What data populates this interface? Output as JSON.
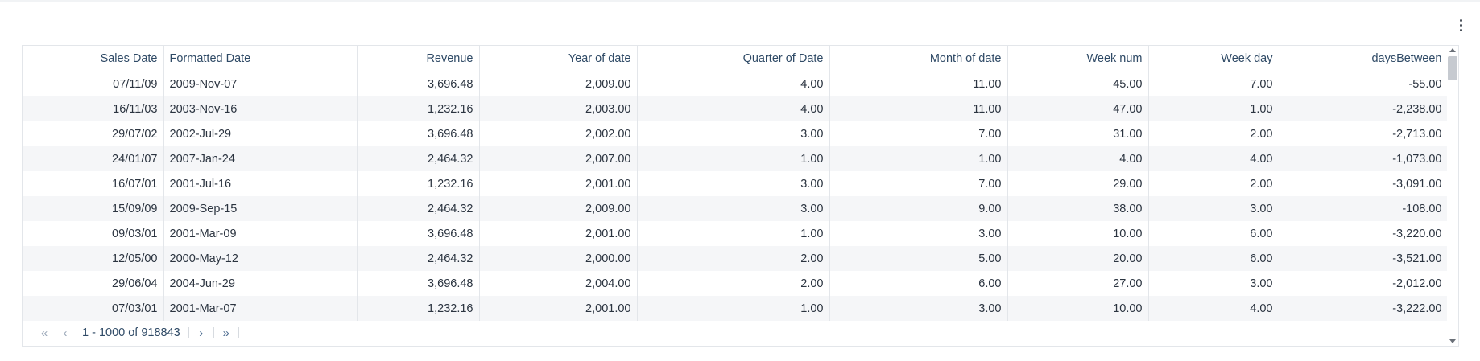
{
  "table": {
    "columns": [
      "Sales Date",
      "Formatted Date",
      "Revenue",
      "Year of date",
      "Quarter of Date",
      "Month of date",
      "Week num",
      "Week day",
      "daysBetween"
    ],
    "rows": [
      [
        "07/11/09",
        "2009-Nov-07",
        "3,696.48",
        "2,009.00",
        "4.00",
        "11.00",
        "45.00",
        "7.00",
        "-55.00"
      ],
      [
        "16/11/03",
        "2003-Nov-16",
        "1,232.16",
        "2,003.00",
        "4.00",
        "11.00",
        "47.00",
        "1.00",
        "-2,238.00"
      ],
      [
        "29/07/02",
        "2002-Jul-29",
        "3,696.48",
        "2,002.00",
        "3.00",
        "7.00",
        "31.00",
        "2.00",
        "-2,713.00"
      ],
      [
        "24/01/07",
        "2007-Jan-24",
        "2,464.32",
        "2,007.00",
        "1.00",
        "1.00",
        "4.00",
        "4.00",
        "-1,073.00"
      ],
      [
        "16/07/01",
        "2001-Jul-16",
        "1,232.16",
        "2,001.00",
        "3.00",
        "7.00",
        "29.00",
        "2.00",
        "-3,091.00"
      ],
      [
        "15/09/09",
        "2009-Sep-15",
        "2,464.32",
        "2,009.00",
        "3.00",
        "9.00",
        "38.00",
        "3.00",
        "-108.00"
      ],
      [
        "09/03/01",
        "2001-Mar-09",
        "3,696.48",
        "2,001.00",
        "1.00",
        "3.00",
        "10.00",
        "6.00",
        "-3,220.00"
      ],
      [
        "12/05/00",
        "2000-May-12",
        "2,464.32",
        "2,000.00",
        "2.00",
        "5.00",
        "20.00",
        "6.00",
        "-3,521.00"
      ],
      [
        "29/06/04",
        "2004-Jun-29",
        "3,696.48",
        "2,004.00",
        "2.00",
        "6.00",
        "27.00",
        "3.00",
        "-2,012.00"
      ],
      [
        "07/03/01",
        "2001-Mar-07",
        "1,232.16",
        "2,001.00",
        "1.00",
        "3.00",
        "10.00",
        "4.00",
        "-3,222.00"
      ]
    ]
  },
  "pagination": {
    "first": "«",
    "prev": "‹",
    "info": "1 - 1000 of 918843",
    "next": "›",
    "last": "»"
  },
  "icons": {
    "menu": "kebab-menu-icon",
    "first": "double-chevron-left-icon",
    "prev": "chevron-left-icon",
    "next": "chevron-right-icon",
    "last": "double-chevron-right-icon"
  },
  "colors": {
    "header_text": "#2f4a66",
    "stripe": "#f5f6f8",
    "border": "#e3e6ea"
  }
}
